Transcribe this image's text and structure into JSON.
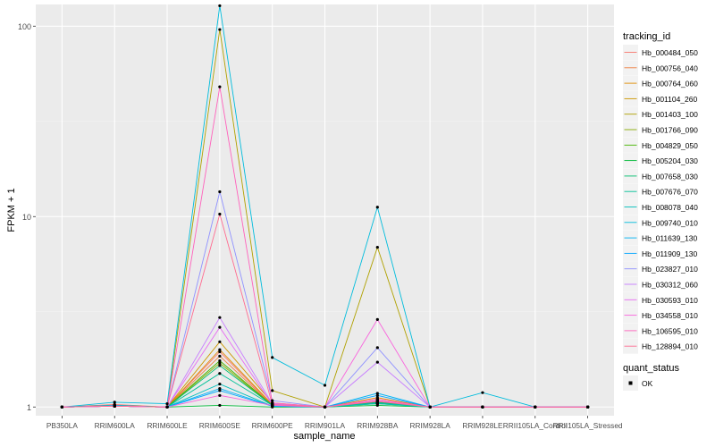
{
  "chart_data": {
    "type": "line",
    "title": "",
    "xlabel": "sample_name",
    "ylabel": "FPKM + 1",
    "y_scale": "log10",
    "ylim": [
      0.9,
      130
    ],
    "y_ticks": [
      1,
      10,
      100
    ],
    "y_tick_labels": [
      "1",
      "10",
      "100"
    ],
    "grid": true,
    "categories": [
      "PB350LA",
      "RRIM600LA",
      "RRIM600LE",
      "RRIM600SE",
      "RRIM600PE",
      "RRIM901LA",
      "RRIM928BA",
      "RRIM928LA",
      "RRIM928LE",
      "RRII105LA_Control",
      "RRII105LA_Stressed"
    ],
    "series": [
      {
        "name": "Hb_000484_050",
        "color": "#F8766D",
        "values": [
          1,
          1.03,
          1,
          1.95,
          1.02,
          1,
          1.1,
          1,
          1,
          1,
          1
        ]
      },
      {
        "name": "Hb_000756_040",
        "color": "#EE8043",
        "values": [
          1,
          1.01,
          1,
          1.85,
          1.02,
          1,
          1.08,
          1,
          1,
          1,
          1
        ]
      },
      {
        "name": "Hb_000764_060",
        "color": "#E08B00",
        "values": [
          1,
          1.02,
          1,
          2.0,
          1.03,
          1,
          1.12,
          1,
          1,
          1,
          1
        ]
      },
      {
        "name": "Hb_001104_260",
        "color": "#CC9600",
        "values": [
          1,
          1.02,
          1,
          2.2,
          1.05,
          1,
          1.06,
          1,
          1,
          1,
          1
        ]
      },
      {
        "name": "Hb_001403_100",
        "color": "#B0A100",
        "values": [
          1,
          1.01,
          1,
          96,
          1.22,
          1,
          6.9,
          1,
          1,
          1,
          1
        ]
      },
      {
        "name": "Hb_001766_090",
        "color": "#88AB00",
        "values": [
          1,
          1.01,
          1,
          1.7,
          1.02,
          1,
          1.05,
          1,
          1,
          1,
          1
        ]
      },
      {
        "name": "Hb_004829_050",
        "color": "#48B400",
        "values": [
          1,
          1.01,
          1,
          1.75,
          1.02,
          1,
          1.04,
          1,
          1,
          1,
          1
        ]
      },
      {
        "name": "Hb_005204_030",
        "color": "#00BA38",
        "values": [
          1,
          1.02,
          1,
          1.02,
          1.0,
          1,
          1.02,
          1,
          1,
          1,
          1
        ]
      },
      {
        "name": "Hb_007658_030",
        "color": "#00BE6D",
        "values": [
          1,
          1.01,
          1,
          1.65,
          1.02,
          1,
          1.06,
          1,
          1,
          1,
          1
        ]
      },
      {
        "name": "Hb_007676_070",
        "color": "#00C097",
        "values": [
          1,
          1.01,
          1,
          1.5,
          1.02,
          1,
          1.05,
          1,
          1,
          1,
          1
        ]
      },
      {
        "name": "Hb_008078_040",
        "color": "#00C0BC",
        "values": [
          1,
          1.01,
          1,
          1.32,
          1.01,
          1,
          1.04,
          1,
          1,
          1,
          1
        ]
      },
      {
        "name": "Hb_009740_010",
        "color": "#00BCDC",
        "values": [
          1,
          1.06,
          1.04,
          128,
          1.82,
          1.3,
          11.2,
          1,
          1.19,
          1,
          1
        ]
      },
      {
        "name": "Hb_011639_130",
        "color": "#00B3F4",
        "values": [
          1,
          1.02,
          1,
          1.25,
          1.01,
          1,
          1.18,
          1,
          1,
          1,
          1
        ]
      },
      {
        "name": "Hb_011909_130",
        "color": "#00A5FF",
        "values": [
          1,
          1.01,
          1,
          1.22,
          1.01,
          1,
          1.15,
          1,
          1,
          1,
          1
        ]
      },
      {
        "name": "Hb_023827_010",
        "color": "#8F91FF",
        "values": [
          1,
          1.01,
          1,
          13.5,
          1.08,
          1,
          2.05,
          1,
          1,
          1,
          1
        ]
      },
      {
        "name": "Hb_030312_060",
        "color": "#C77CFF",
        "values": [
          1,
          1.01,
          1,
          2.95,
          1.04,
          1,
          1.72,
          1,
          1,
          1,
          1
        ]
      },
      {
        "name": "Hb_030593_010",
        "color": "#E76BF3",
        "values": [
          1,
          1.01,
          1,
          2.62,
          1.03,
          1,
          1.08,
          1,
          1,
          1,
          1
        ]
      },
      {
        "name": "Hb_034558_010",
        "color": "#F963DD",
        "values": [
          1,
          1.01,
          1,
          1.15,
          1.02,
          1,
          2.88,
          1,
          1,
          1,
          1
        ]
      },
      {
        "name": "Hb_106595_010",
        "color": "#FF62BC",
        "values": [
          1,
          1.01,
          1,
          48,
          1.05,
          1,
          1.1,
          1,
          1,
          1,
          1
        ]
      },
      {
        "name": "Hb_128894_010",
        "color": "#FF6C91",
        "values": [
          1,
          1.01,
          1,
          10.3,
          1.03,
          1,
          1.07,
          1,
          1,
          1,
          1
        ]
      }
    ],
    "legend": {
      "title": "tracking_id",
      "position": "right"
    },
    "legend2": {
      "title": "quant_status",
      "entries": [
        "OK"
      ]
    }
  }
}
